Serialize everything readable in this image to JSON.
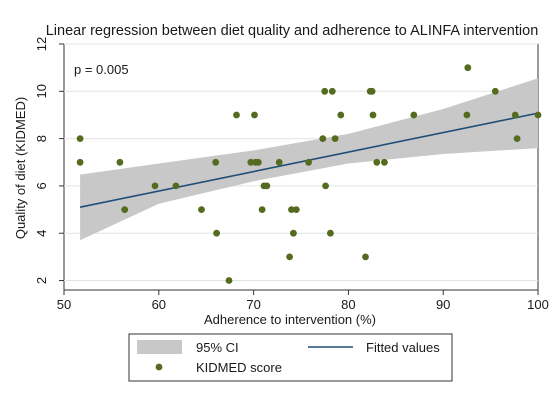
{
  "chart_data": {
    "type": "scatter",
    "title": "Linear regression between diet quality and adherence to ALINFA intervention",
    "xlabel": "Adherence to intervention (%)",
    "ylabel": "Quality of diet (KIDMED)",
    "annotation": "p = 0.005",
    "xlim": [
      50,
      100
    ],
    "ylim": [
      1.6,
      12
    ],
    "xticks": [
      50,
      60,
      70,
      80,
      90,
      100
    ],
    "yticks": [
      2,
      4,
      6,
      8,
      10,
      12
    ],
    "grid": true,
    "legend_position": "bottom",
    "colors": {
      "points": "#556b1f",
      "fitted_line": "#1f4e79",
      "ci_band": "#c8c8c8"
    },
    "series": [
      {
        "name": "KIDMED score",
        "type": "scatter",
        "points": [
          [
            51.7,
            8
          ],
          [
            51.7,
            7
          ],
          [
            55.9,
            7
          ],
          [
            56.4,
            5
          ],
          [
            59.6,
            6
          ],
          [
            61.8,
            6
          ],
          [
            64.5,
            5
          ],
          [
            66.0,
            7
          ],
          [
            66.1,
            4
          ],
          [
            67.4,
            2
          ],
          [
            68.2,
            9
          ],
          [
            69.7,
            7
          ],
          [
            70.1,
            9
          ],
          [
            70.2,
            7
          ],
          [
            70.5,
            7
          ],
          [
            70.9,
            5
          ],
          [
            71.1,
            6
          ],
          [
            71.4,
            6
          ],
          [
            72.7,
            7
          ],
          [
            73.8,
            3
          ],
          [
            74.0,
            5
          ],
          [
            74.2,
            4
          ],
          [
            74.5,
            5
          ],
          [
            75.8,
            7
          ],
          [
            77.3,
            8
          ],
          [
            77.5,
            10
          ],
          [
            77.6,
            6
          ],
          [
            78.1,
            4
          ],
          [
            78.3,
            10
          ],
          [
            78.6,
            8
          ],
          [
            79.2,
            9
          ],
          [
            81.8,
            3
          ],
          [
            82.3,
            10
          ],
          [
            82.5,
            10
          ],
          [
            82.6,
            9
          ],
          [
            83.0,
            7
          ],
          [
            83.8,
            7
          ],
          [
            86.9,
            9
          ],
          [
            92.5,
            9
          ],
          [
            92.6,
            11
          ],
          [
            95.5,
            10
          ],
          [
            97.6,
            9
          ],
          [
            97.8,
            8
          ],
          [
            100.0,
            9
          ]
        ]
      },
      {
        "name": "Fitted values",
        "type": "line",
        "points": [
          [
            51.7,
            5.1
          ],
          [
            100.0,
            9.08
          ]
        ]
      },
      {
        "name": "95% CI",
        "type": "area",
        "upper": [
          [
            51.7,
            6.48
          ],
          [
            60,
            6.95
          ],
          [
            70,
            7.5
          ],
          [
            80,
            8.2
          ],
          [
            90,
            9.25
          ],
          [
            100,
            10.55
          ]
        ],
        "lower": [
          [
            51.7,
            3.7
          ],
          [
            60,
            5.25
          ],
          [
            70,
            6.2
          ],
          [
            80,
            6.95
          ],
          [
            90,
            7.35
          ],
          [
            100,
            7.6
          ]
        ]
      }
    ],
    "legend": [
      {
        "label": "95% CI",
        "kind": "area"
      },
      {
        "label": "Fitted values",
        "kind": "line"
      },
      {
        "label": "KIDMED score",
        "kind": "marker"
      }
    ]
  }
}
